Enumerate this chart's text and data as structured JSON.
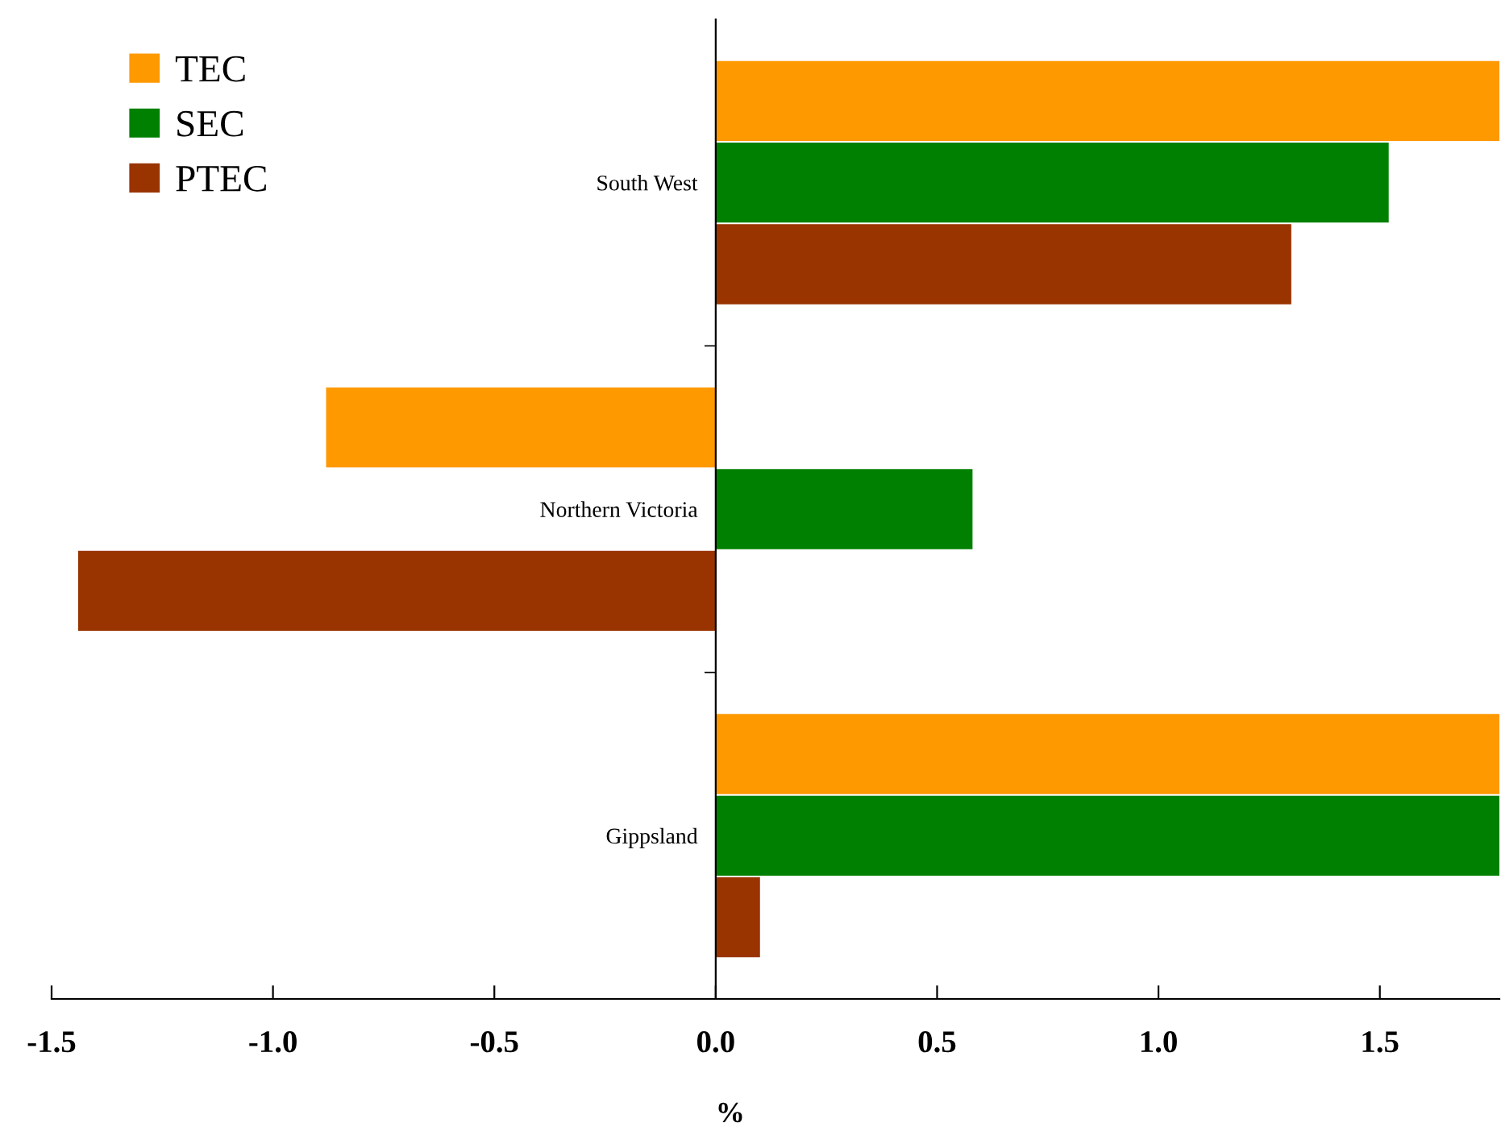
{
  "chart_data": {
    "type": "bar",
    "orientation": "horizontal",
    "xlabel": "%",
    "categories": [
      "South West",
      "Northern Victoria",
      "Gippsland"
    ],
    "series": [
      {
        "name": "TEC",
        "color": "#ff9900",
        "values": [
          1.77,
          -0.88,
          1.77
        ]
      },
      {
        "name": "SEC",
        "color": "#008000",
        "values": [
          1.52,
          0.58,
          1.77
        ]
      },
      {
        "name": "PTEC",
        "color": "#993300",
        "values": [
          1.3,
          -1.44,
          0.1
        ]
      }
    ],
    "xlim": [
      -1.5,
      1.77
    ],
    "xticks": [
      {
        "value": -1.5,
        "label": "-1.5"
      },
      {
        "value": -1.0,
        "label": "-1.0"
      },
      {
        "value": -0.5,
        "label": "-0.5"
      },
      {
        "value": 0.0,
        "label": "0.0"
      },
      {
        "value": 0.5,
        "label": "0.5"
      },
      {
        "value": 1.0,
        "label": "1.0"
      },
      {
        "value": 1.5,
        "label": "1.5"
      }
    ],
    "grid": false,
    "legend": "top left"
  }
}
